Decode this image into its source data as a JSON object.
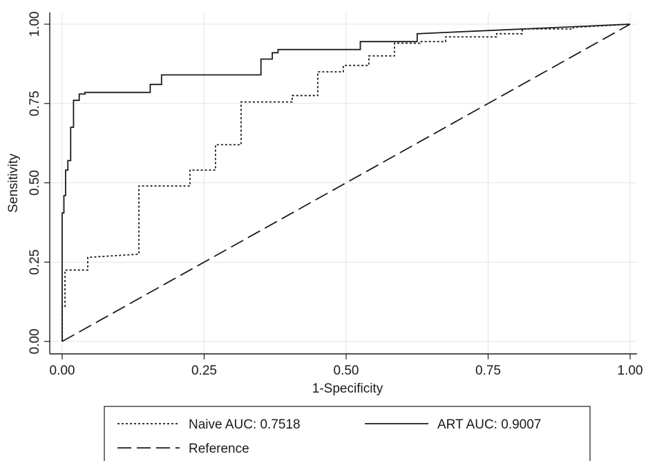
{
  "chart_data": {
    "type": "line",
    "title": "",
    "xlabel": "1-Specificity",
    "ylabel": "Sensitivity",
    "xlim": [
      0,
      1
    ],
    "ylim": [
      0,
      1
    ],
    "xticks": [
      "0.00",
      "0.25",
      "0.50",
      "0.75",
      "1.00"
    ],
    "yticks": [
      "0.00",
      "0.25",
      "0.50",
      "0.75",
      "1.00"
    ],
    "grid": true,
    "legend_position": "bottom",
    "series": [
      {
        "name": "Naive AUC: 0.7518",
        "style": "dotted",
        "color": "#1a1a1a",
        "x": [
          0,
          0,
          0.005,
          0.005,
          0.045,
          0.045,
          0.135,
          0.135,
          0.225,
          0.225,
          0.27,
          0.27,
          0.315,
          0.315,
          0.405,
          0.405,
          0.45,
          0.45,
          0.495,
          0.495,
          0.54,
          0.54,
          0.585,
          0.585,
          0.63,
          0.63,
          0.675,
          0.675,
          0.765,
          0.765,
          0.81,
          0.81,
          0.9,
          0.9,
          1.0
        ],
        "y": [
          0,
          0.11,
          0.11,
          0.225,
          0.225,
          0.265,
          0.275,
          0.49,
          0.49,
          0.54,
          0.54,
          0.62,
          0.62,
          0.755,
          0.755,
          0.775,
          0.775,
          0.85,
          0.85,
          0.87,
          0.87,
          0.9,
          0.9,
          0.94,
          0.94,
          0.945,
          0.945,
          0.96,
          0.96,
          0.97,
          0.97,
          0.985,
          0.985,
          0.99,
          1.0
        ]
      },
      {
        "name": "ART AUC: 0.9007",
        "style": "solid",
        "color": "#1a1a1a",
        "x": [
          0,
          0,
          0.003,
          0.003,
          0.006,
          0.006,
          0.01,
          0.01,
          0.015,
          0.015,
          0.02,
          0.02,
          0.03,
          0.03,
          0.04,
          0.04,
          0.155,
          0.155,
          0.175,
          0.175,
          0.35,
          0.35,
          0.37,
          0.37,
          0.38,
          0.38,
          0.525,
          0.525,
          0.625,
          0.625,
          1.0
        ],
        "y": [
          0,
          0.405,
          0.405,
          0.46,
          0.46,
          0.54,
          0.54,
          0.57,
          0.57,
          0.675,
          0.675,
          0.76,
          0.76,
          0.78,
          0.78,
          0.785,
          0.785,
          0.81,
          0.81,
          0.84,
          0.84,
          0.89,
          0.89,
          0.91,
          0.91,
          0.92,
          0.92,
          0.945,
          0.945,
          0.97,
          1.0
        ]
      },
      {
        "name": "Reference",
        "style": "dashed",
        "color": "#1a1a1a",
        "x": [
          0,
          1
        ],
        "y": [
          0,
          1
        ]
      }
    ]
  }
}
